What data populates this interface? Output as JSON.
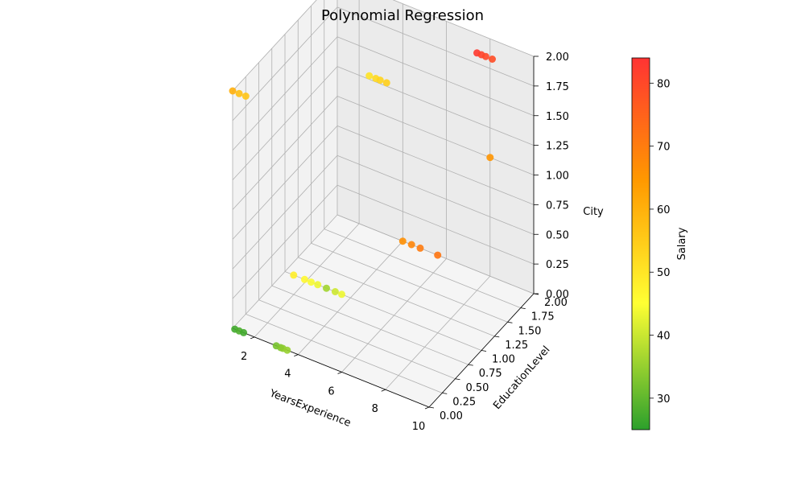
{
  "chart_data": {
    "type": "scatter",
    "title": "Polynomial Regression",
    "xlabel": "YearsExperience",
    "ylabel": "EducationLevel",
    "zlabel": "City",
    "colorbar_label": "Salary",
    "xlim": [
      1,
      10
    ],
    "ylim": [
      0,
      2
    ],
    "zlim": [
      0,
      2
    ],
    "color_range": [
      25,
      84
    ],
    "x_ticks": [
      "2",
      "4",
      "6",
      "8",
      "10"
    ],
    "y_ticks": [
      "0.00",
      "0.25",
      "0.50",
      "0.75",
      "1.00",
      "1.25",
      "1.50",
      "1.75",
      "2.00"
    ],
    "z_ticks": [
      "0.00",
      "0.25",
      "0.50",
      "0.75",
      "1.00",
      "1.25",
      "1.50",
      "1.75",
      "2.00"
    ],
    "colorbar_ticks": [
      "30",
      "40",
      "50",
      "60",
      "70",
      "80"
    ],
    "colormap": [
      "#2ca02c",
      "#ffff33",
      "#ff9900",
      "#ff3333"
    ],
    "grid": true,
    "points": [
      {
        "x": 1.1,
        "y": 0,
        "z": 0,
        "c": 27
      },
      {
        "x": 1.3,
        "y": 0,
        "z": 0,
        "c": 28
      },
      {
        "x": 1.5,
        "y": 0,
        "z": 0,
        "c": 27
      },
      {
        "x": 3.0,
        "y": 0,
        "z": 0,
        "c": 32
      },
      {
        "x": 3.2,
        "y": 0,
        "z": 0,
        "c": 33
      },
      {
        "x": 3.3,
        "y": 0,
        "z": 0,
        "c": 34
      },
      {
        "x": 3.5,
        "y": 0,
        "z": 0,
        "c": 35
      },
      {
        "x": 1.4,
        "y": 1,
        "z": 0,
        "c": 48
      },
      {
        "x": 1.9,
        "y": 1,
        "z": 0,
        "c": 46
      },
      {
        "x": 2.2,
        "y": 1,
        "z": 0,
        "c": 44
      },
      {
        "x": 2.5,
        "y": 1,
        "z": 0,
        "c": 43
      },
      {
        "x": 2.9,
        "y": 1,
        "z": 0,
        "c": 36
      },
      {
        "x": 3.3,
        "y": 1,
        "z": 0,
        "c": 40
      },
      {
        "x": 3.6,
        "y": 1,
        "z": 0,
        "c": 43
      },
      {
        "x": 4.0,
        "y": 2,
        "z": 0,
        "c": 66
      },
      {
        "x": 4.4,
        "y": 2,
        "z": 0,
        "c": 68
      },
      {
        "x": 4.8,
        "y": 2,
        "z": 0,
        "c": 70
      },
      {
        "x": 5.6,
        "y": 2,
        "z": 0,
        "c": 71
      },
      {
        "x": 8.0,
        "y": 2,
        "z": 1,
        "c": 65
      },
      {
        "x": 1.0,
        "y": 0,
        "z": 2,
        "c": 60
      },
      {
        "x": 1.3,
        "y": 0,
        "z": 2,
        "c": 57
      },
      {
        "x": 1.6,
        "y": 0,
        "z": 2,
        "c": 56
      },
      {
        "x": 5.1,
        "y": 0.9,
        "z": 2,
        "c": 50
      },
      {
        "x": 5.4,
        "y": 0.9,
        "z": 2,
        "c": 52
      },
      {
        "x": 5.6,
        "y": 0.9,
        "z": 2,
        "c": 53
      },
      {
        "x": 5.9,
        "y": 0.9,
        "z": 2,
        "c": 54
      },
      {
        "x": 8.0,
        "y": 1.75,
        "z": 2,
        "c": 83
      },
      {
        "x": 8.2,
        "y": 1.75,
        "z": 2,
        "c": 81
      },
      {
        "x": 8.4,
        "y": 1.75,
        "z": 2,
        "c": 80
      },
      {
        "x": 8.7,
        "y": 1.75,
        "z": 2,
        "c": 79
      }
    ]
  }
}
